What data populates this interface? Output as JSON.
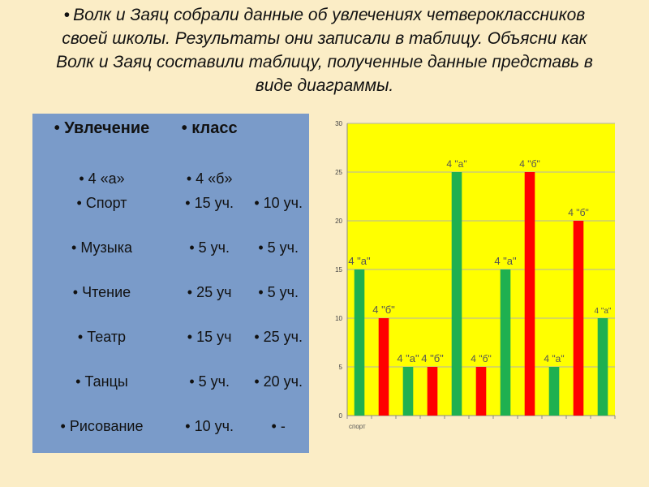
{
  "title": "Волк и Заяц собрали данные об увлечениях четвероклассников своей школы. Результаты они записали в таблицу. Объясни как Волк и Заяц составили таблицу, полученные данные представь в виде диаграммы.",
  "bullet": "•",
  "table": {
    "header": [
      "Увлечение",
      "класс",
      ""
    ],
    "subheader": [
      "4 «а»",
      "4 «б»",
      ""
    ],
    "rows": [
      [
        "Спорт",
        "15 уч.",
        "10 уч."
      ],
      [
        "Музыка",
        "5 уч.",
        "5 уч."
      ],
      [
        "Чтение",
        "25 уч",
        "5 уч."
      ],
      [
        "Театр",
        "15 уч",
        "25 уч."
      ],
      [
        "Танцы",
        "5 уч.",
        "20 уч."
      ],
      [
        "Рисование",
        "10 уч.",
        "-"
      ]
    ]
  },
  "chart_data": {
    "type": "bar",
    "ylim": [
      0,
      30
    ],
    "yticks": [
      0,
      5,
      10,
      15,
      20,
      25,
      30
    ],
    "first_category_label": "спорт",
    "bars": [
      {
        "value": 15,
        "label": "4 \"а\"",
        "color": "#1fb050"
      },
      {
        "value": 10,
        "label": "4 \"б\"",
        "color": "#ff0000"
      },
      {
        "value": 5,
        "label": "4 \"а\"",
        "color": "#1fb050"
      },
      {
        "value": 5,
        "label": "4 \"б\"",
        "color": "#ff0000"
      },
      {
        "value": 25,
        "label": "4 \"а\"",
        "color": "#1fb050"
      },
      {
        "value": 5,
        "label": "4 \"б\"",
        "color": "#ff0000"
      },
      {
        "value": 15,
        "label": "4 \"а\"",
        "color": "#1fb050"
      },
      {
        "value": 25,
        "label": "4 \"б\"",
        "color": "#ff0000"
      },
      {
        "value": 5,
        "label": "4 \"а\"",
        "color": "#1fb050"
      },
      {
        "value": 20,
        "label": "4 \"б\"",
        "color": "#ff0000"
      },
      {
        "value": 10,
        "label": "4 \"а\"",
        "color": "#1fb050"
      }
    ],
    "plot_background": "#ffff00",
    "grid": true
  }
}
